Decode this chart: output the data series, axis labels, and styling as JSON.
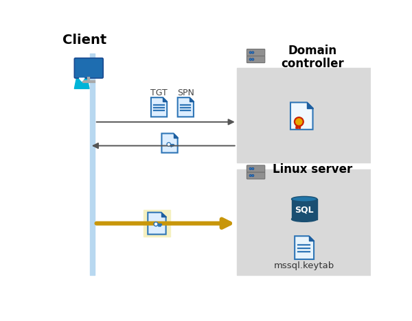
{
  "bg_color": "#ffffff",
  "gray_box_color": "#d9d9d9",
  "client_label": "Client",
  "domain_label": "Domain\ncontroller",
  "linux_label": "Linux server",
  "tgt_label": "TGT",
  "spn_label": "SPN",
  "mssql_label": "mssql.keytab",
  "client_line_color": "#b8d8f0",
  "arrow_color_black": "#555555",
  "arrow_color_gold": "#c8960a",
  "highlight_box_color": "#f5f0c0",
  "doc_blue": "#2e75b6",
  "doc_blue_light": "#4a90d9",
  "doc_fold_blue": "#1e5fa0",
  "server_gray": "#909090",
  "server_dark": "#707070",
  "sql_dark": "#1a4f72",
  "sql_mid": "#2175a8",
  "cert_red": "#cc2200",
  "cert_yellow": "#e8a800",
  "person_cyan": "#00b4d8",
  "monitor_blue": "#1e6db0",
  "monitor_stand": "#aaaaaa"
}
